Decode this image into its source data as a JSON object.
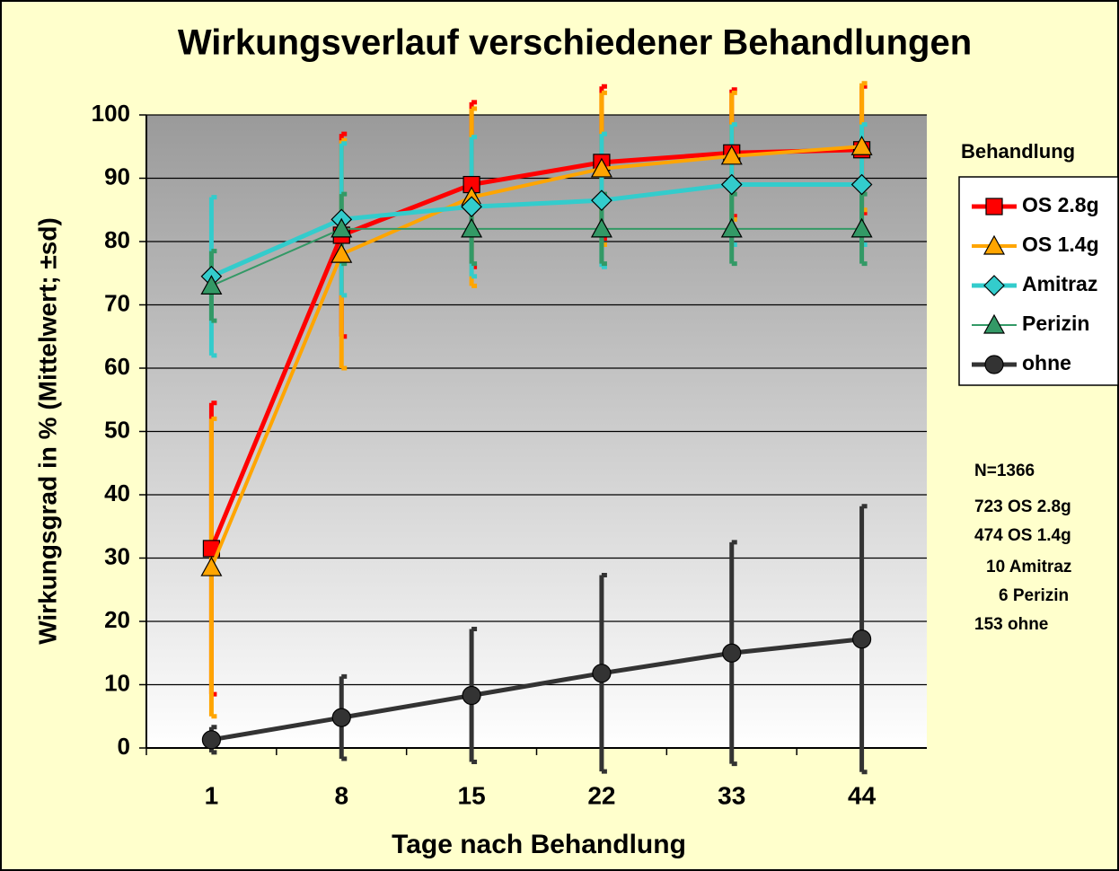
{
  "chart_data": {
    "type": "line",
    "title": "Wirkungsverlauf verschiedener Behandlungen",
    "x_label": "Tage nach Behandlung",
    "y_label": "Wirkungsgrad in % (Mittelwert; ±sd)",
    "categories": [
      "1",
      "8",
      "15",
      "22",
      "33",
      "44"
    ],
    "ylim": [
      0,
      100
    ],
    "yticks": [
      0,
      10,
      20,
      30,
      40,
      50,
      60,
      70,
      80,
      90,
      100
    ],
    "grid": true,
    "legend_title": "Behandlung",
    "legend_position": "right",
    "series": [
      {
        "name": "OS 2.8g",
        "color": "#ff0000",
        "marker": "square",
        "values": [
          31.5,
          81,
          89,
          92.5,
          94,
          94.5
        ],
        "errors": [
          23,
          16,
          13,
          12,
          10,
          10
        ]
      },
      {
        "name": "OS 1.4g",
        "color": "#ffa500",
        "marker": "triangle",
        "values": [
          28.5,
          78,
          87,
          91.5,
          93.5,
          95
        ],
        "errors": [
          23.5,
          18,
          14,
          12,
          10,
          10
        ]
      },
      {
        "name": "Amitraz",
        "color": "#33cccc",
        "marker": "diamond",
        "values": [
          74.5,
          83.5,
          85.5,
          86.5,
          89,
          89
        ],
        "errors": [
          12.5,
          12,
          11,
          10.5,
          9.5,
          9.5
        ]
      },
      {
        "name": "Perizin",
        "color": "#339966",
        "marker": "triangle",
        "values": [
          73,
          82,
          82,
          82,
          82,
          82
        ],
        "errors": [
          5.5,
          5.5,
          5.5,
          5.5,
          5.5,
          5.5
        ]
      },
      {
        "name": "ohne",
        "color": "#333333",
        "marker": "circle",
        "values": [
          1.3,
          4.8,
          8.3,
          11.8,
          15,
          17.2
        ],
        "errors": [
          2,
          6.5,
          10.5,
          15.5,
          17.5,
          21
        ]
      }
    ],
    "notes": [
      "N=1366",
      "723 OS 2.8g",
      "474 OS 1.4g",
      "10 Amitraz",
      "6 Perizin",
      "153 ohne"
    ]
  }
}
